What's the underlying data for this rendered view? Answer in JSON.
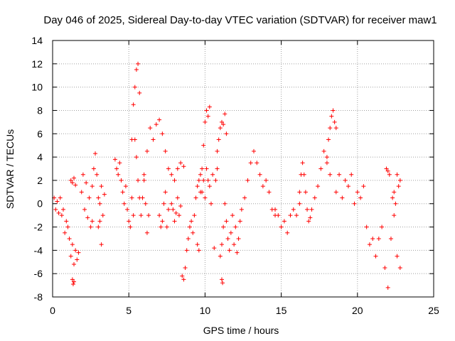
{
  "chart_data": {
    "type": "scatter",
    "title": "Day 046 of 2025, Sidereal Day-to-day VTEC variation (SDTVAR) for receiver maw1",
    "xlabel": "GPS time / hours",
    "ylabel": "SDTVAR / TECUs",
    "xlim": [
      0,
      25
    ],
    "ylim": [
      -8,
      14
    ],
    "xticks": [
      0,
      5,
      10,
      15,
      20,
      25
    ],
    "yticks": [
      -8,
      -6,
      -4,
      -2,
      0,
      2,
      4,
      6,
      8,
      10,
      12,
      14
    ],
    "grid": true,
    "marker": "+",
    "color": "#ff0000",
    "series": [
      {
        "name": "SDTVAR",
        "segments": [
          {
            "x": [
              0.1,
              0.2,
              0.3,
              0.4
            ],
            "y": [
              0.5,
              -0.5,
              0.2,
              -0.8
            ]
          },
          {
            "x": [
              0.5,
              0.6,
              0.7,
              0.8,
              0.9,
              1.0,
              1.1,
              1.2,
              1.3,
              1.4,
              1.5,
              1.6,
              1.7
            ],
            "y": [
              0.5,
              -1.0,
              -0.5,
              -2.5,
              -1.5,
              -2.0,
              -3.0,
              -4.5,
              -3.5,
              -5.2,
              -4.0,
              -4.8,
              -4.2
            ]
          },
          {
            "x": [
              1.3,
              1.35,
              1.4
            ],
            "y": [
              -6.5,
              -6.9,
              -6.7
            ]
          },
          {
            "x": [
              1.2,
              1.3,
              1.4,
              1.5
            ],
            "y": [
              2.0,
              1.8,
              2.2,
              1.6
            ]
          },
          {
            "x": [
              1.9,
              2.0,
              2.1,
              2.2,
              2.3,
              2.4,
              2.5,
              2.6
            ],
            "y": [
              1.0,
              2.5,
              -0.5,
              1.8,
              -1.2,
              0.5,
              -2.0,
              -1.5
            ]
          },
          {
            "x": [
              2.6,
              2.7,
              2.8,
              2.9,
              3.0,
              3.1,
              3.2
            ],
            "y": [
              1.5,
              3.0,
              4.3,
              2.5,
              0.5,
              -1.5,
              -3.5
            ]
          },
          {
            "x": [
              3.0,
              3.1,
              3.2,
              3.3,
              3.4
            ],
            "y": [
              -2.0,
              0.0,
              1.5,
              -1.0,
              0.8
            ]
          },
          {
            "x": [
              4.1,
              4.2,
              4.3,
              4.4,
              4.5,
              4.6,
              4.7,
              4.8,
              4.9,
              5.0,
              5.1,
              5.2,
              5.3
            ],
            "y": [
              3.8,
              3.0,
              2.5,
              3.5,
              2.0,
              1.0,
              0.0,
              1.5,
              -0.5,
              -1.5,
              -2.0,
              0.5,
              -1.0
            ]
          },
          {
            "x": [
              5.2,
              5.3,
              5.4,
              5.5,
              5.6,
              5.7
            ],
            "y": [
              5.5,
              8.5,
              10.0,
              11.5,
              12.0,
              9.5
            ]
          },
          {
            "x": [
              5.4,
              5.5,
              5.6,
              5.7,
              5.8,
              5.9,
              6.0,
              6.1,
              6.2,
              6.3
            ],
            "y": [
              5.5,
              4.0,
              2.0,
              0.5,
              -1.0,
              0.5,
              2.0,
              0.0,
              -2.5,
              -1.0
            ]
          },
          {
            "x": [
              6.0,
              6.2,
              6.4,
              6.6,
              6.8,
              7.0,
              7.2,
              7.4,
              7.6,
              7.8,
              8.0,
              8.2,
              8.4,
              8.6
            ],
            "y": [
              2.5,
              4.5,
              6.5,
              5.5,
              6.8,
              7.2,
              6.0,
              4.5,
              3.0,
              2.5,
              2.0,
              3.0,
              3.5,
              3.2
            ]
          },
          {
            "x": [
              7.0,
              7.1,
              7.2,
              7.3,
              7.4,
              7.5,
              7.6
            ],
            "y": [
              -1.0,
              -2.0,
              -1.5,
              0.0,
              1.0,
              -2.0,
              -0.5
            ]
          },
          {
            "x": [
              7.8,
              7.9,
              8.0,
              8.1,
              8.2,
              8.3,
              8.4
            ],
            "y": [
              0.0,
              -0.5,
              -1.5,
              -0.8,
              0.5,
              -1.0,
              -0.2
            ]
          },
          {
            "x": [
              8.5,
              8.6,
              8.7,
              8.8,
              8.9,
              9.0,
              9.1,
              9.2,
              9.3,
              9.4,
              9.5,
              9.6,
              9.7,
              9.8
            ],
            "y": [
              -6.2,
              -6.5,
              -5.5,
              -4.0,
              -3.0,
              -2.0,
              -1.5,
              -2.5,
              -1.0,
              0.5,
              1.5,
              2.0,
              2.5,
              1.0
            ]
          },
          {
            "x": [
              9.5,
              9.6,
              9.7,
              9.8,
              9.9,
              10.0,
              10.1,
              10.2,
              10.3,
              10.4,
              10.5,
              10.6,
              10.7,
              10.8
            ],
            "y": [
              -3.5,
              -4.0,
              1.0,
              3.0,
              2.0,
              0.5,
              3.0,
              2.0,
              1.5,
              0.0,
              2.5,
              -3.8,
              2.0,
              3.0
            ]
          },
          {
            "x": [
              9.9,
              10.0,
              10.1,
              10.2,
              10.3
            ],
            "y": [
              5.0,
              7.0,
              8.0,
              7.5,
              8.3
            ]
          },
          {
            "x": [
              10.8,
              10.9,
              11.0,
              11.1,
              11.2,
              11.3,
              11.4
            ],
            "y": [
              4.5,
              5.5,
              6.5,
              7.0,
              6.8,
              7.7,
              6.0
            ]
          },
          {
            "x": [
              11.0,
              11.1,
              11.2,
              11.3,
              11.4,
              11.5,
              11.6,
              11.7,
              11.8,
              11.9,
              12.0,
              12.1,
              12.2,
              12.3
            ],
            "y": [
              -4.5,
              -3.5,
              -2.0,
              0.0,
              -1.5,
              -3.0,
              -4.0,
              -2.5,
              -1.0,
              -3.5,
              -2.0,
              -4.2,
              -3.0,
              -1.5
            ]
          },
          {
            "x": [
              11.1,
              11.15
            ],
            "y": [
              -6.5,
              -6.8
            ]
          },
          {
            "x": [
              12.4,
              12.6,
              12.8,
              13.0,
              13.2,
              13.4,
              13.6,
              13.8,
              14.0,
              14.2,
              14.4,
              14.6
            ],
            "y": [
              -0.5,
              0.5,
              2.0,
              3.5,
              4.5,
              3.5,
              2.5,
              1.5,
              2.0,
              1.0,
              -0.5,
              -1.0
            ]
          },
          {
            "x": [
              14.6,
              14.8,
              15.0,
              15.2,
              15.4,
              15.6,
              15.8,
              16.0,
              16.2
            ],
            "y": [
              -0.5,
              -1.0,
              -2.0,
              -1.5,
              -2.5,
              -1.0,
              -0.5,
              -1.0,
              0.0
            ]
          },
          {
            "x": [
              16.2,
              16.3,
              16.4,
              16.5,
              16.6,
              16.7,
              16.8,
              16.9
            ],
            "y": [
              1.0,
              2.5,
              3.5,
              2.5,
              1.0,
              -0.5,
              -1.5,
              -1.2
            ]
          },
          {
            "x": [
              17.0,
              17.2,
              17.4,
              17.6,
              17.8,
              18.0,
              18.2
            ],
            "y": [
              -0.5,
              0.5,
              1.5,
              3.0,
              4.5,
              3.5,
              2.5
            ]
          },
          {
            "x": [
              18.0,
              18.1,
              18.2,
              18.3,
              18.4,
              18.5,
              18.6
            ],
            "y": [
              4.0,
              5.5,
              6.5,
              7.5,
              8.0,
              7.0,
              6.5
            ]
          },
          {
            "x": [
              18.6,
              18.8,
              19.0,
              19.2,
              19.4,
              19.6,
              19.8,
              20.0,
              20.2,
              20.4
            ],
            "y": [
              1.0,
              2.5,
              0.5,
              2.0,
              1.5,
              2.5,
              0.0,
              1.0,
              0.5,
              1.5
            ]
          },
          {
            "x": [
              20.6,
              20.8,
              21.0,
              21.2,
              21.4,
              21.6,
              21.8,
              22.0,
              22.2,
              22.4,
              22.6,
              22.8
            ],
            "y": [
              -2.0,
              -3.5,
              -3.0,
              -4.5,
              -3.0,
              -2.0,
              -5.5,
              -7.2,
              -3.0,
              -1.0,
              -4.5,
              -5.5
            ]
          },
          {
            "x": [
              21.9,
              22.0,
              22.1
            ],
            "y": [
              3.0,
              2.8,
              2.5
            ]
          },
          {
            "x": [
              22.3,
              22.4,
              22.5,
              22.6,
              22.7,
              22.8
            ],
            "y": [
              0.5,
              1.0,
              0.0,
              2.5,
              1.5,
              2.0
            ]
          }
        ]
      }
    ]
  }
}
